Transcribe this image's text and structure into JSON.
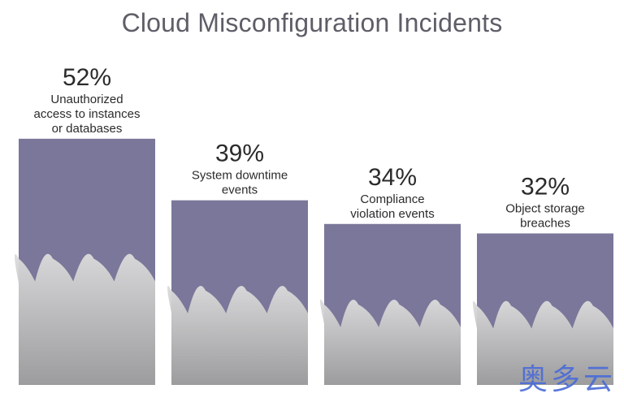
{
  "title": "Cloud Misconfiguration Incidents",
  "watermark": "奥多云",
  "chart_data": {
    "type": "bar",
    "title": "Cloud Misconfiguration Incidents",
    "categories": [
      "Unauthorized access to instances or databases",
      "System downtime events",
      "Compliance violation events",
      "Object storage breaches"
    ],
    "label_lines": [
      [
        "Unauthorized",
        "access to instances",
        "or databases"
      ],
      [
        "System downtime",
        "events"
      ],
      [
        "Compliance",
        "violation events"
      ],
      [
        "Object storage",
        "breaches"
      ]
    ],
    "values": [
      52,
      39,
      34,
      32
    ],
    "value_labels": [
      "52%",
      "39%",
      "34%",
      "32%"
    ],
    "unit": "%",
    "bar_color": "#7a779a",
    "cloud_color": "#c7c7c7",
    "grid": false,
    "legend": "none"
  }
}
